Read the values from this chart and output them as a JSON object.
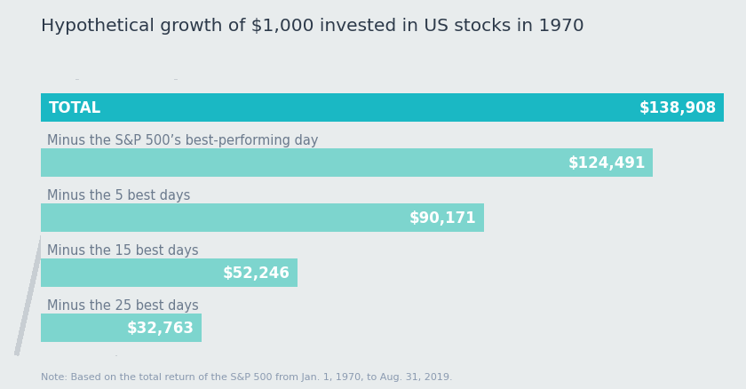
{
  "title": "Hypothetical growth of $1,000 invested in US stocks in 1970",
  "note": "Note: Based on the total return of the S&P 500 from Jan. 1, 1970, to Aug. 31, 2019.",
  "categories": [
    "TOTAL",
    "Minus the S&P 500’s best-performing day",
    "Minus the 5 best days",
    "Minus the 15 best days",
    "Minus the 25 best days"
  ],
  "values": [
    138908,
    124491,
    90171,
    52246,
    32763
  ],
  "labels": [
    "$138,908",
    "$124,491",
    "$90,171",
    "$52,246",
    "$32,763"
  ],
  "max_value": 138908,
  "bar_color_total": "#1ab8c4",
  "bar_color_others": "#7dd5ce",
  "background_color": "#e8eced",
  "stripe_light": "#dde1e4",
  "stripe_dark": "#c8ced3",
  "title_color": "#2d3a4a",
  "category_label_color": "#6b7a8d",
  "note_color": "#8a9ab0",
  "title_fontsize": 14.5,
  "label_fontsize": 12,
  "category_fontsize": 10.5,
  "note_fontsize": 8
}
